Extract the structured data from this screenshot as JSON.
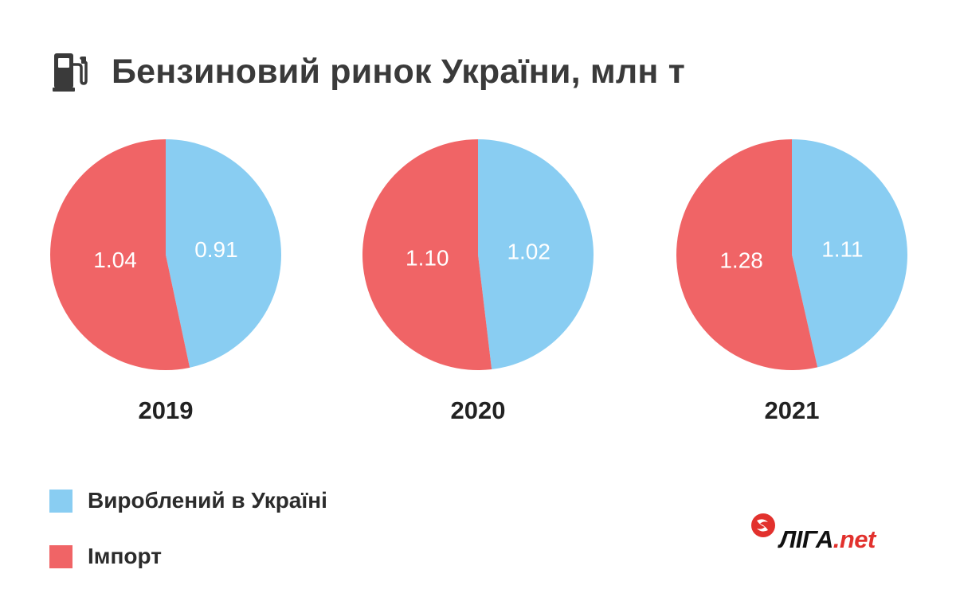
{
  "title": "Бензиновий ринок України, млн т",
  "icons": {
    "header": "fuel-pump-icon",
    "logo": "liga-logo-icon"
  },
  "colors": {
    "produced": "#89CDF2",
    "import": "#F06466",
    "text": "#2b2b2b",
    "logo_red": "#e2312d"
  },
  "chart_data": {
    "type": "pie",
    "title": "Бензиновий ринок України, млн т",
    "legend_placement": "bottom-left",
    "series_names": [
      "Вироблений в Україні",
      "Імпорт"
    ],
    "pies": [
      {
        "label": "2019",
        "slices": [
          {
            "name": "Вироблений в Україні",
            "value": 0.91,
            "label": "0.91"
          },
          {
            "name": "Імпорт",
            "value": 1.04,
            "label": "1.04"
          }
        ]
      },
      {
        "label": "2020",
        "slices": [
          {
            "name": "Вироблений в Україні",
            "value": 1.02,
            "label": "1.02"
          },
          {
            "name": "Імпорт",
            "value": 1.1,
            "label": "1.10"
          }
        ]
      },
      {
        "label": "2021",
        "slices": [
          {
            "name": "Вироблений в Україні",
            "value": 1.11,
            "label": "1.11"
          },
          {
            "name": "Імпорт",
            "value": 1.28,
            "label": "1.28"
          }
        ]
      }
    ]
  },
  "legend": [
    {
      "label": "Вироблений в Україні",
      "color": "#89CDF2"
    },
    {
      "label": "Імпорт",
      "color": "#F06466"
    }
  ],
  "logo": {
    "part1": "ЛІГА",
    "part2": ".net"
  }
}
